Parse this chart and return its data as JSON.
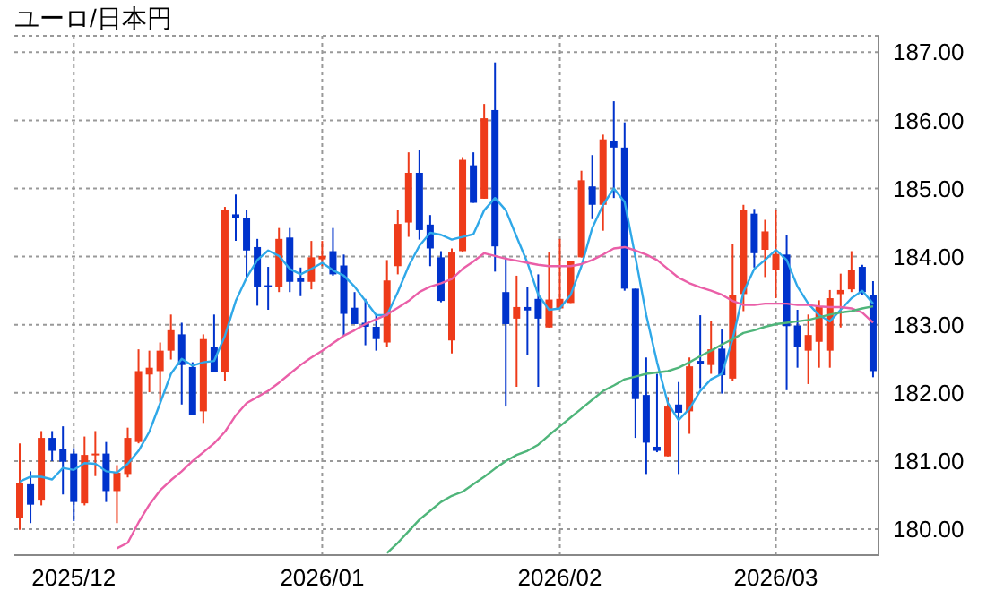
{
  "chart_data": {
    "type": "candlestick",
    "title": "ユーロ/日本円",
    "categories": [
      null,
      null,
      null,
      null,
      null,
      "2025/12",
      null,
      null,
      null,
      null,
      null,
      null,
      null,
      null,
      null,
      null,
      null,
      null,
      null,
      null,
      null,
      null,
      null,
      null,
      null,
      null,
      null,
      null,
      "2026/01",
      null,
      null,
      null,
      null,
      null,
      null,
      null,
      null,
      null,
      null,
      null,
      null,
      null,
      null,
      null,
      null,
      null,
      null,
      null,
      null,
      null,
      "2026/02",
      null,
      null,
      null,
      null,
      null,
      null,
      null,
      null,
      null,
      null,
      null,
      null,
      null,
      null,
      null,
      null,
      null,
      null,
      null,
      "2026/03",
      null,
      null,
      null,
      null,
      null,
      null,
      null,
      null,
      null
    ],
    "ohlc": [
      [
        180.16,
        181.26,
        179.99,
        180.68
      ],
      [
        180.66,
        180.85,
        180.09,
        180.36
      ],
      [
        180.42,
        181.44,
        180.35,
        181.34
      ],
      [
        181.34,
        181.44,
        181.0,
        181.15
      ],
      [
        181.18,
        181.51,
        180.51,
        180.99
      ],
      [
        181.11,
        181.19,
        180.12,
        180.4
      ],
      [
        180.38,
        181.36,
        180.35,
        181.09
      ],
      [
        181.09,
        181.44,
        180.78,
        181.11
      ],
      [
        181.11,
        181.28,
        180.4,
        180.56
      ],
      [
        180.56,
        180.94,
        180.09,
        180.83
      ],
      [
        180.81,
        181.49,
        180.76,
        181.34
      ],
      [
        181.28,
        182.64,
        181.26,
        182.32
      ],
      [
        182.27,
        182.62,
        182.01,
        182.37
      ],
      [
        182.32,
        182.74,
        181.87,
        182.62
      ],
      [
        182.62,
        183.15,
        182.49,
        182.92
      ],
      [
        182.86,
        183.03,
        181.83,
        182.41
      ],
      [
        182.38,
        182.45,
        181.68,
        181.68
      ],
      [
        181.73,
        182.86,
        181.56,
        182.79
      ],
      [
        182.67,
        183.15,
        182.3,
        182.3
      ],
      [
        182.3,
        184.73,
        182.18,
        184.69
      ],
      [
        184.62,
        184.91,
        184.23,
        184.56
      ],
      [
        184.56,
        184.68,
        183.69,
        184.09
      ],
      [
        184.14,
        184.26,
        183.28,
        183.55
      ],
      [
        183.58,
        183.85,
        183.22,
        183.55
      ],
      [
        183.56,
        184.42,
        183.48,
        184.26
      ],
      [
        184.28,
        184.42,
        183.48,
        183.63
      ],
      [
        183.69,
        183.84,
        183.42,
        183.63
      ],
      [
        183.63,
        184.23,
        183.52,
        183.99
      ],
      [
        183.96,
        184.23,
        183.86,
        184.01
      ],
      [
        184.08,
        184.42,
        183.72,
        183.74
      ],
      [
        183.87,
        184.03,
        182.84,
        183.16
      ],
      [
        183.25,
        183.48,
        183.01,
        183.01
      ],
      [
        183.03,
        183.38,
        182.7,
        182.97
      ],
      [
        182.97,
        183.14,
        182.62,
        182.79
      ],
      [
        182.74,
        183.95,
        182.67,
        183.65
      ],
      [
        183.86,
        184.68,
        183.74,
        184.48
      ],
      [
        184.5,
        185.53,
        184.29,
        185.23
      ],
      [
        185.23,
        185.57,
        184.25,
        184.39
      ],
      [
        184.47,
        184.61,
        183.86,
        184.12
      ],
      [
        183.99,
        184.08,
        183.33,
        183.35
      ],
      [
        182.77,
        184.12,
        182.58,
        184.06
      ],
      [
        184.08,
        185.46,
        184.06,
        185.42
      ],
      [
        185.34,
        185.53,
        184.79,
        184.79
      ],
      [
        184.85,
        186.24,
        184.85,
        186.03
      ],
      [
        186.15,
        186.85,
        183.78,
        184.15
      ],
      [
        183.48,
        183.99,
        181.8,
        183.01
      ],
      [
        183.09,
        183.72,
        182.09,
        183.26
      ],
      [
        183.26,
        183.56,
        182.56,
        183.21
      ],
      [
        183.38,
        183.74,
        182.09,
        183.09
      ],
      [
        182.96,
        184.06,
        182.96,
        183.37
      ],
      [
        183.24,
        184.26,
        183.24,
        183.38
      ],
      [
        183.32,
        183.93,
        183.32,
        183.93
      ],
      [
        183.99,
        185.26,
        183.99,
        185.12
      ],
      [
        185.03,
        185.49,
        184.55,
        184.76
      ],
      [
        184.76,
        185.79,
        184.38,
        185.72
      ],
      [
        185.7,
        186.28,
        184.86,
        185.6
      ],
      [
        185.6,
        185.97,
        183.5,
        183.53
      ],
      [
        183.53,
        183.53,
        181.34,
        181.91
      ],
      [
        181.97,
        182.52,
        180.81,
        181.27
      ],
      [
        181.21,
        182.28,
        181.13,
        181.15
      ],
      [
        181.07,
        181.94,
        181.07,
        181.8
      ],
      [
        181.83,
        182.16,
        180.81,
        181.71
      ],
      [
        181.73,
        182.52,
        181.4,
        182.39
      ],
      [
        182.47,
        183.14,
        182.07,
        182.43
      ],
      [
        182.41,
        183.05,
        182.28,
        182.64
      ],
      [
        182.65,
        182.93,
        181.99,
        182.26
      ],
      [
        182.21,
        184.18,
        182.18,
        183.44
      ],
      [
        183.45,
        184.76,
        183.2,
        184.68
      ],
      [
        184.63,
        184.7,
        183.84,
        184.05
      ],
      [
        184.1,
        184.54,
        183.7,
        184.37
      ],
      [
        183.81,
        184.68,
        183.39,
        184.04
      ],
      [
        184.03,
        184.32,
        182.04,
        182.98
      ],
      [
        182.99,
        183.22,
        182.37,
        182.68
      ],
      [
        182.62,
        183.15,
        182.13,
        182.85
      ],
      [
        182.75,
        183.36,
        182.37,
        183.27
      ],
      [
        182.62,
        183.51,
        182.37,
        183.39
      ],
      [
        183.45,
        183.75,
        182.96,
        183.51
      ],
      [
        183.52,
        184.08,
        183.48,
        183.8
      ],
      [
        183.85,
        183.88,
        183.44,
        183.48
      ],
      [
        183.44,
        183.64,
        182.23,
        182.32
      ]
    ],
    "colors": [
      "#ee3b1a",
      "#0033cc",
      "#ee3b1a",
      "#0033cc",
      "#0033cc",
      "#0033cc",
      "#ee3b1a",
      "#ee3b1a",
      "#0033cc",
      "#ee3b1a",
      "#ee3b1a",
      "#ee3b1a",
      "#ee3b1a",
      "#ee3b1a",
      "#ee3b1a",
      "#0033cc",
      "#0033cc",
      "#ee3b1a",
      "#0033cc",
      "#ee3b1a",
      "#0033cc",
      "#0033cc",
      "#0033cc",
      "#0033cc",
      "#ee3b1a",
      "#0033cc",
      "#0033cc",
      "#ee3b1a",
      "#ee3b1a",
      "#0033cc",
      "#0033cc",
      "#0033cc",
      "#0033cc",
      "#0033cc",
      "#ee3b1a",
      "#ee3b1a",
      "#ee3b1a",
      "#0033cc",
      "#0033cc",
      "#0033cc",
      "#ee3b1a",
      "#ee3b1a",
      "#0033cc",
      "#ee3b1a",
      "#0033cc",
      "#0033cc",
      "#ee3b1a",
      "#0033cc",
      "#0033cc",
      "#ee3b1a",
      "#ee3b1a",
      "#ee3b1a",
      "#ee3b1a",
      "#0033cc",
      "#ee3b1a",
      "#0033cc",
      "#0033cc",
      "#0033cc",
      "#0033cc",
      "#0033cc",
      "#ee3b1a",
      "#0033cc",
      "#ee3b1a",
      "#0033cc",
      "#ee3b1a",
      "#0033cc",
      "#ee3b1a",
      "#ee3b1a",
      "#0033cc",
      "#ee3b1a",
      "#ee3b1a",
      "#0033cc",
      "#0033cc",
      "#ee3b1a",
      "#ee3b1a",
      "#ee3b1a",
      "#ee3b1a",
      "#ee3b1a",
      "#0033cc",
      "#0033cc"
    ],
    "series": [
      {
        "type": "line",
        "color": "#2fa8e8",
        "values": [
          180.7,
          180.77,
          180.77,
          180.73,
          180.9,
          180.87,
          180.97,
          180.96,
          180.85,
          180.83,
          180.96,
          181.15,
          181.43,
          181.85,
          182.28,
          182.5,
          182.4,
          182.45,
          182.47,
          182.84,
          183.35,
          183.69,
          183.95,
          184.09,
          184.01,
          183.82,
          183.74,
          183.82,
          183.91,
          183.8,
          183.72,
          183.56,
          183.35,
          183.14,
          183.14,
          183.48,
          183.86,
          184.16,
          184.35,
          184.32,
          184.25,
          184.29,
          184.33,
          184.68,
          184.86,
          184.68,
          184.29,
          183.91,
          183.44,
          183.22,
          183.24,
          183.44,
          183.86,
          184.42,
          184.76,
          185.0,
          184.8,
          183.99,
          183.14,
          182.45,
          181.85,
          181.6,
          181.77,
          182.03,
          182.2,
          182.28,
          182.79,
          183.48,
          183.82,
          183.95,
          184.1,
          183.95,
          183.56,
          183.31,
          183.14,
          183.05,
          183.22,
          183.39,
          183.5,
          183.31
        ]
      },
      {
        "type": "line",
        "color": "#ea5fa8",
        "values": [
          null,
          null,
          null,
          null,
          null,
          null,
          null,
          null,
          null,
          179.72,
          179.8,
          180.1,
          180.36,
          180.57,
          180.72,
          180.85,
          181.0,
          181.13,
          181.26,
          181.43,
          181.67,
          181.85,
          181.94,
          182.03,
          182.15,
          182.28,
          182.41,
          182.52,
          182.62,
          182.73,
          182.84,
          182.92,
          183.01,
          183.08,
          183.15,
          183.25,
          183.35,
          183.48,
          183.56,
          183.61,
          183.67,
          183.82,
          183.93,
          184.05,
          184.01,
          183.97,
          183.94,
          183.91,
          183.88,
          183.86,
          183.86,
          183.86,
          183.89,
          183.95,
          184.03,
          184.12,
          184.14,
          184.09,
          184.03,
          183.95,
          183.82,
          183.69,
          183.61,
          183.55,
          183.5,
          183.44,
          183.35,
          183.29,
          183.29,
          183.31,
          183.31,
          183.31,
          183.29,
          183.29,
          183.27,
          183.26,
          183.26,
          183.24,
          183.18,
          183.03
        ]
      },
      {
        "type": "line",
        "color": "#4fb57a",
        "values": [
          null,
          null,
          null,
          null,
          null,
          null,
          null,
          null,
          null,
          null,
          null,
          null,
          null,
          null,
          null,
          null,
          null,
          null,
          null,
          null,
          null,
          null,
          null,
          null,
          null,
          null,
          null,
          null,
          null,
          null,
          null,
          null,
          null,
          null,
          179.65,
          179.8,
          179.97,
          180.14,
          180.27,
          180.4,
          180.49,
          180.55,
          180.66,
          180.77,
          180.89,
          181.0,
          181.09,
          181.15,
          181.24,
          181.38,
          181.51,
          181.64,
          181.77,
          181.9,
          182.03,
          182.11,
          182.2,
          182.24,
          182.28,
          182.3,
          182.32,
          182.37,
          182.45,
          182.54,
          182.62,
          182.71,
          182.79,
          182.88,
          182.92,
          182.97,
          183.01,
          183.03,
          183.05,
          183.07,
          183.11,
          183.15,
          183.18,
          183.2,
          183.24,
          183.27
        ]
      }
    ],
    "ylim": [
      179.62,
      187.24
    ],
    "yticks": [
      {
        "value": 180,
        "label": "180.00"
      },
      {
        "value": 181,
        "label": "181.00"
      },
      {
        "value": 182,
        "label": "182.00"
      },
      {
        "value": 183,
        "label": "183.00"
      },
      {
        "value": 184,
        "label": "184.00"
      },
      {
        "value": 185,
        "label": "185.00"
      },
      {
        "value": 186,
        "label": "186.00"
      },
      {
        "value": 187,
        "label": "187.00"
      }
    ],
    "grid": true
  }
}
